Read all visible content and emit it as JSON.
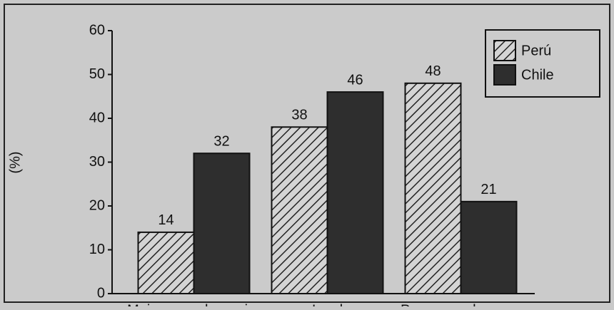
{
  "chart_data": {
    "type": "bar",
    "y_label": "(%)",
    "categories": [
      "Mejor y mucho mejor",
      "Igual",
      "Peor y mucho peor"
    ],
    "series": [
      {
        "name": "Perú",
        "color": "#d4d4d4",
        "hatch": true,
        "values": [
          14,
          38,
          48
        ]
      },
      {
        "name": "Chile",
        "color": "#2e2e2e",
        "values": [
          32,
          46,
          21
        ]
      }
    ],
    "ylim": [
      0,
      60
    ],
    "yticks": [
      0,
      10,
      20,
      30,
      40,
      50,
      60
    ],
    "legend": "upper right"
  }
}
